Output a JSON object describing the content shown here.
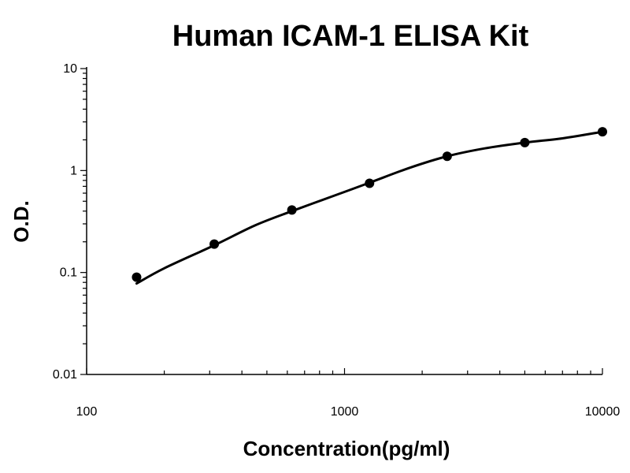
{
  "chart_data": {
    "type": "scatter",
    "title": "Human ICAM-1 ELISA Kit",
    "xlabel": "Concentration(pg/ml)",
    "ylabel": "O.D.",
    "x_scale": "log",
    "y_scale": "log",
    "xlim": [
      100,
      10000
    ],
    "ylim": [
      0.01,
      10
    ],
    "x_ticks": [
      {
        "value": 100,
        "label": "100"
      },
      {
        "value": 1000,
        "label": "1000"
      },
      {
        "value": 10000,
        "label": "10000"
      }
    ],
    "y_ticks": [
      {
        "value": 0.01,
        "label": "0.01"
      },
      {
        "value": 0.1,
        "label": "0.1"
      },
      {
        "value": 1,
        "label": "1"
      },
      {
        "value": 10,
        "label": "10"
      }
    ],
    "grid": false,
    "legend": "none",
    "series": [
      {
        "points": [
          {
            "x": 156.25,
            "y": 0.09
          },
          {
            "x": 312.5,
            "y": 0.19
          },
          {
            "x": 625,
            "y": 0.41
          },
          {
            "x": 1250,
            "y": 0.75
          },
          {
            "x": 2500,
            "y": 1.38
          },
          {
            "x": 5000,
            "y": 1.88
          },
          {
            "x": 10000,
            "y": 2.4
          }
        ],
        "fit_curve": [
          {
            "x": 156.25,
            "y": 0.078
          },
          {
            "x": 200,
            "y": 0.11
          },
          {
            "x": 312.5,
            "y": 0.185
          },
          {
            "x": 450,
            "y": 0.29
          },
          {
            "x": 625,
            "y": 0.4
          },
          {
            "x": 900,
            "y": 0.56
          },
          {
            "x": 1250,
            "y": 0.76
          },
          {
            "x": 1800,
            "y": 1.07
          },
          {
            "x": 2500,
            "y": 1.38
          },
          {
            "x": 3500,
            "y": 1.65
          },
          {
            "x": 5000,
            "y": 1.88
          },
          {
            "x": 7000,
            "y": 2.07
          },
          {
            "x": 10000,
            "y": 2.4
          }
        ]
      }
    ],
    "colors": {
      "line": "#000000",
      "point": "#000000",
      "axis": "#000000"
    }
  }
}
